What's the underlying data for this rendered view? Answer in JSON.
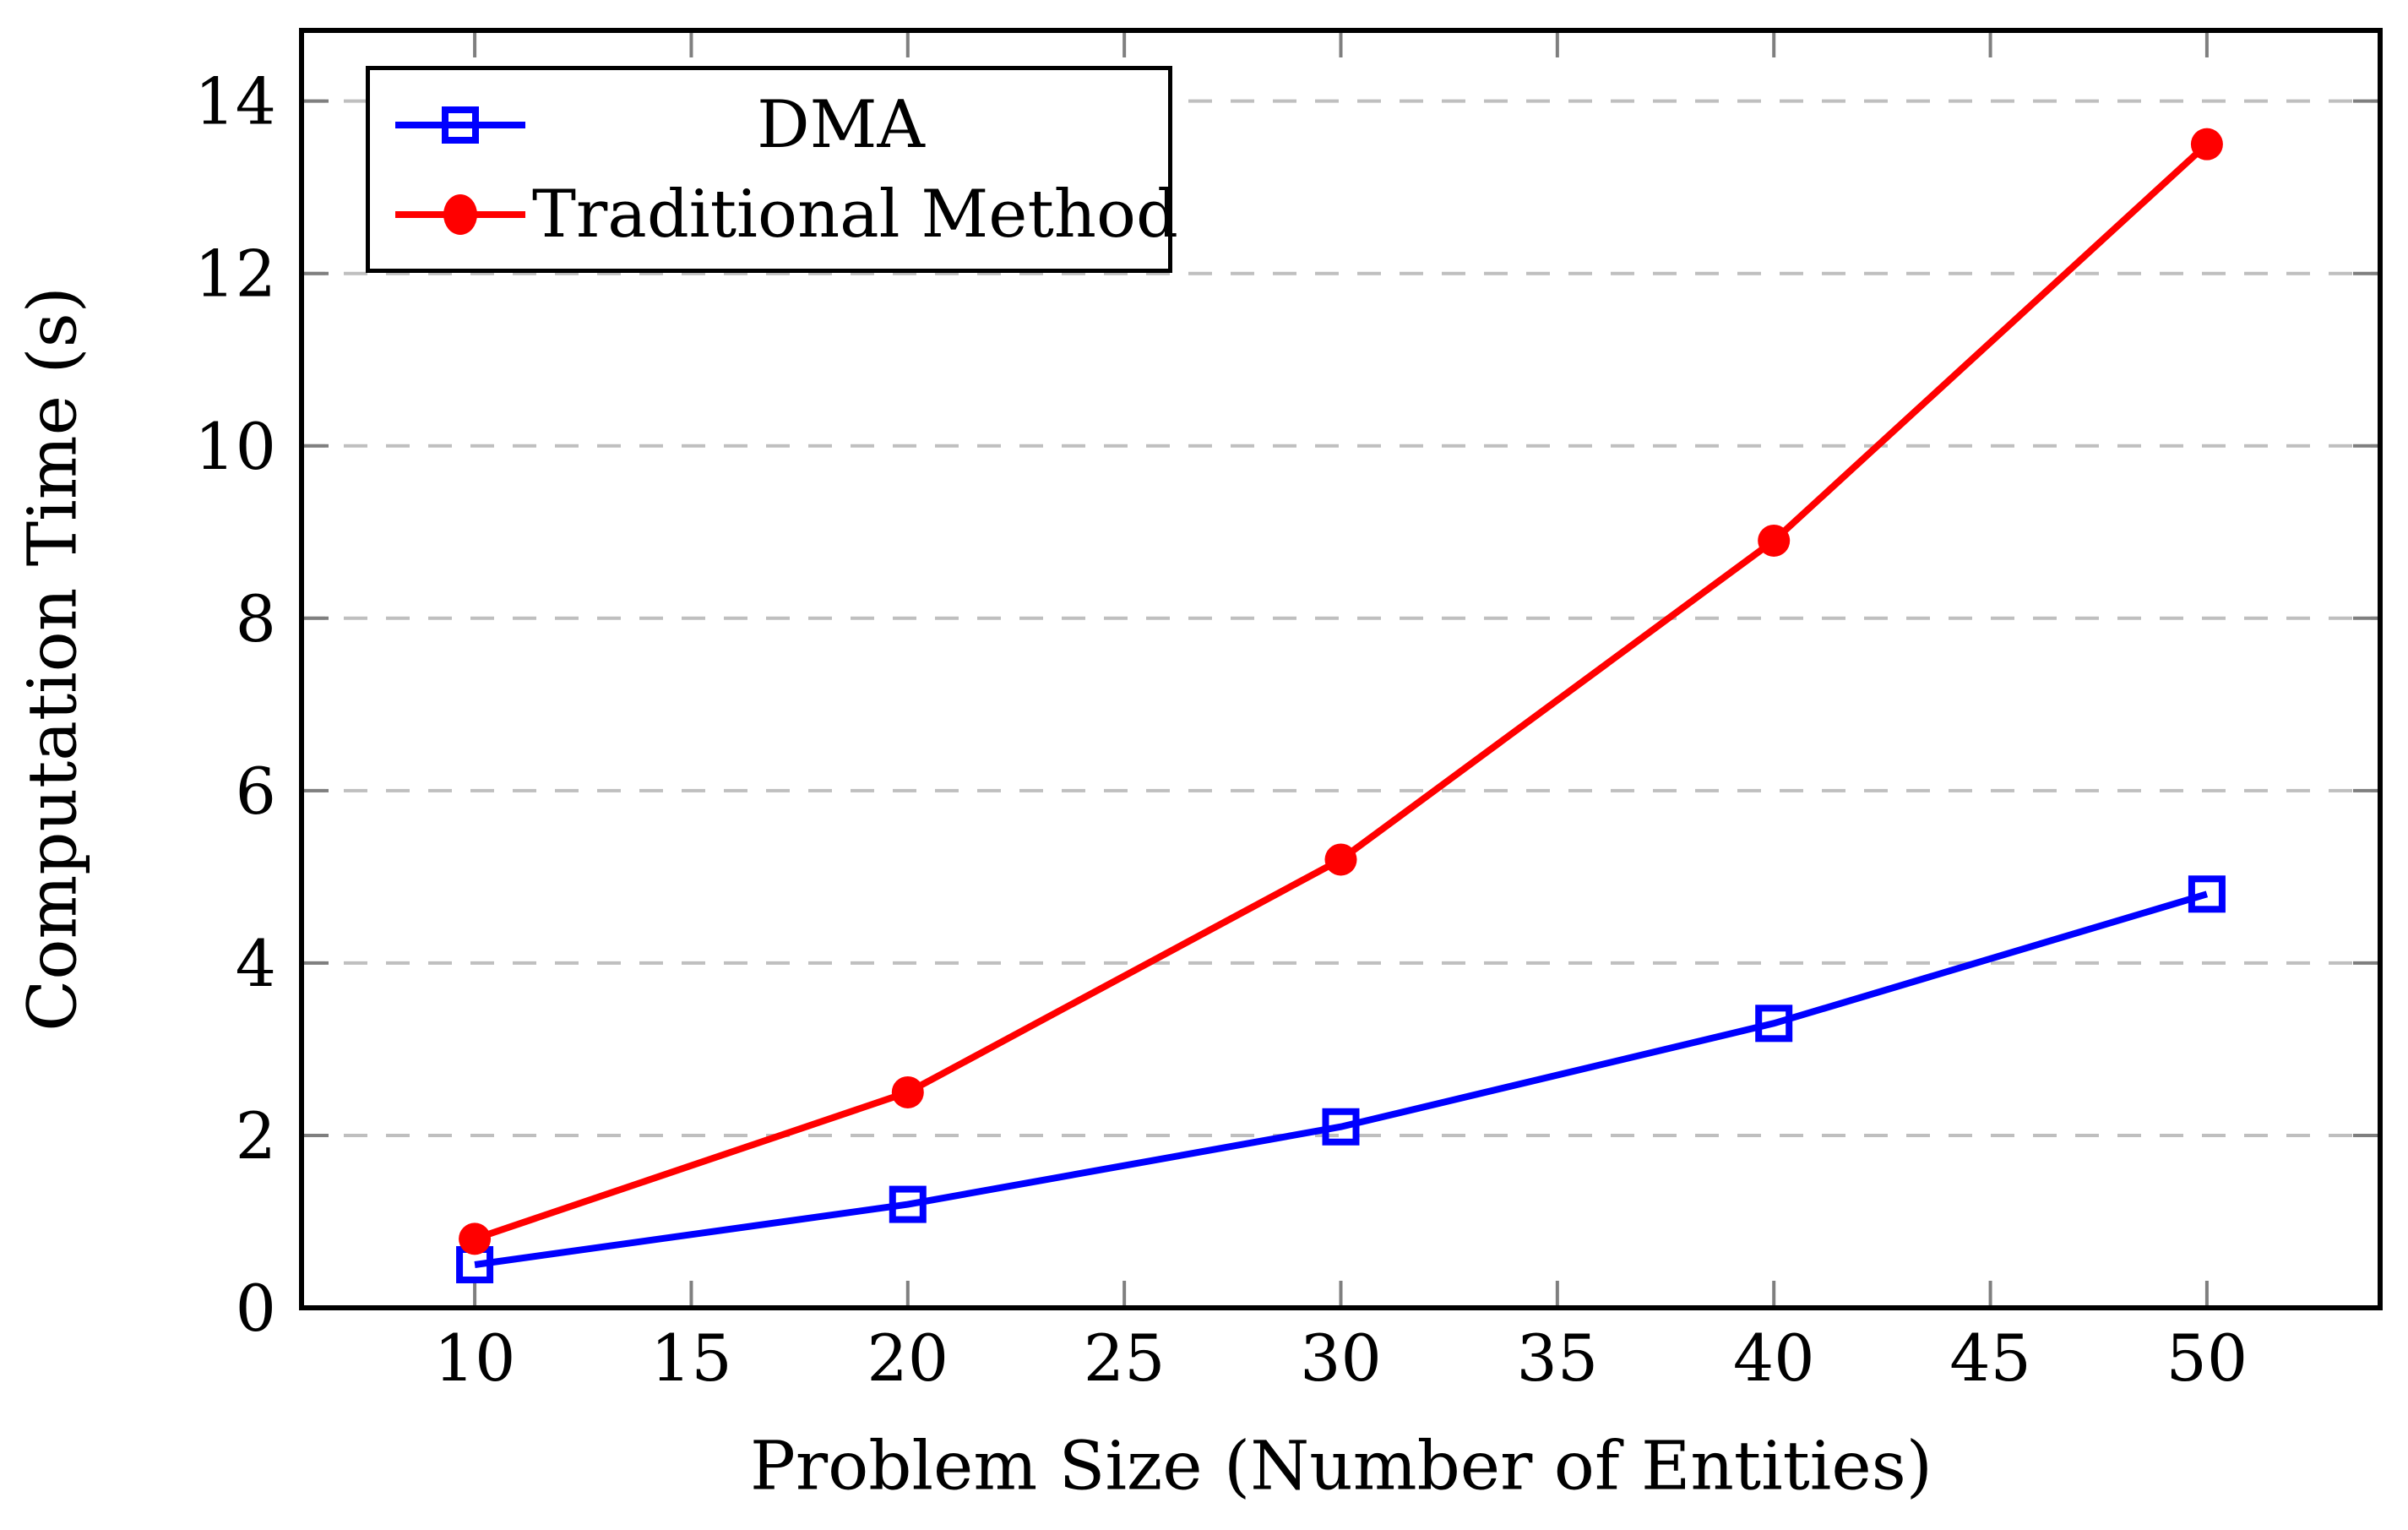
{
  "figure": {
    "background": "#ffffff"
  },
  "chart_data": {
    "type": "line",
    "title": "",
    "xlabel": "Problem Size (Number of Entities)",
    "ylabel": "Computation Time (s)",
    "x": [
      10,
      20,
      30,
      40,
      50
    ],
    "series": [
      {
        "name": "DMA",
        "color": "#0000ff",
        "marker": "square-hollow",
        "values": [
          0.5,
          1.2,
          2.1,
          3.3,
          4.8
        ]
      },
      {
        "name": "Traditional Method",
        "color": "#ff0000",
        "marker": "circle-filled",
        "values": [
          0.8,
          2.5,
          5.2,
          8.9,
          13.5
        ]
      }
    ],
    "x_ticks": [
      10,
      15,
      20,
      25,
      30,
      35,
      40,
      45,
      50
    ],
    "y_ticks": [
      0,
      2,
      4,
      6,
      8,
      10,
      12,
      14
    ],
    "xlim": [
      6,
      54
    ],
    "ylim": [
      0,
      14.82
    ],
    "grid": "horizontal-dashed",
    "grid_color": "#bfbfbf",
    "tick_color": "#7f7f7f",
    "axis_color": "#000000",
    "legend_position": "top-left"
  }
}
